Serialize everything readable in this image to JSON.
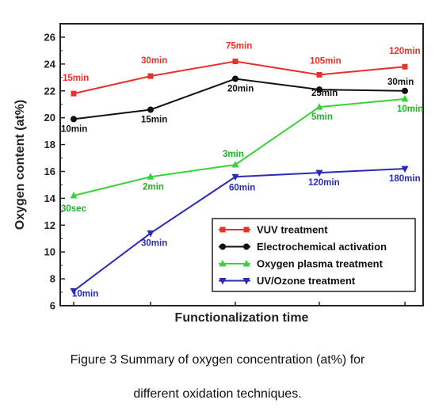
{
  "caption": {
    "line1": "Figure 3 Summary of oxygen concentration (at%) for",
    "line2": "different oxidation techniques."
  },
  "chart_data": {
    "type": "line",
    "title": "",
    "xlabel": "Functionalization time",
    "ylabel": "Oxygen content (at%)",
    "ylim": [
      6,
      27
    ],
    "yticks": [
      6,
      8,
      10,
      12,
      14,
      16,
      18,
      20,
      22,
      24,
      26
    ],
    "x": [
      1,
      2,
      3,
      4,
      5
    ],
    "x_tick_labels": false,
    "grid": false,
    "legend_position": "bottom-right",
    "series": [
      {
        "name": "VUV treatment",
        "color": "#e8312a",
        "marker": "square",
        "values": [
          21.8,
          23.1,
          24.2,
          23.2,
          23.8
        ],
        "labels": [
          "15min",
          "30min",
          "75min",
          "105min",
          "120min"
        ],
        "label_color": "#e8312a"
      },
      {
        "name": "Electrochemical activation",
        "color": "#111111",
        "marker": "circle",
        "values": [
          19.9,
          20.6,
          22.9,
          22.1,
          22.0
        ],
        "labels": [
          "10min",
          "15min",
          "20min",
          "25min",
          "30min"
        ],
        "label_color": "#111111"
      },
      {
        "name": "Oxygen plasma treatment",
        "color": "#3ad13a",
        "marker": "triangle-up",
        "values": [
          14.2,
          15.6,
          16.5,
          20.8,
          21.4
        ],
        "labels": [
          "30sec",
          "2min",
          "3min",
          "5min",
          "10min"
        ],
        "label_color": "#22b322"
      },
      {
        "name": "UV/Ozone treatment",
        "color": "#2a2ab8",
        "marker": "triangle-down",
        "values": [
          7.1,
          11.4,
          15.6,
          15.9,
          16.2
        ],
        "labels": [
          "10min",
          "30min",
          "60min",
          "120min",
          "180min"
        ],
        "label_color": "#2a2ab8"
      }
    ]
  }
}
